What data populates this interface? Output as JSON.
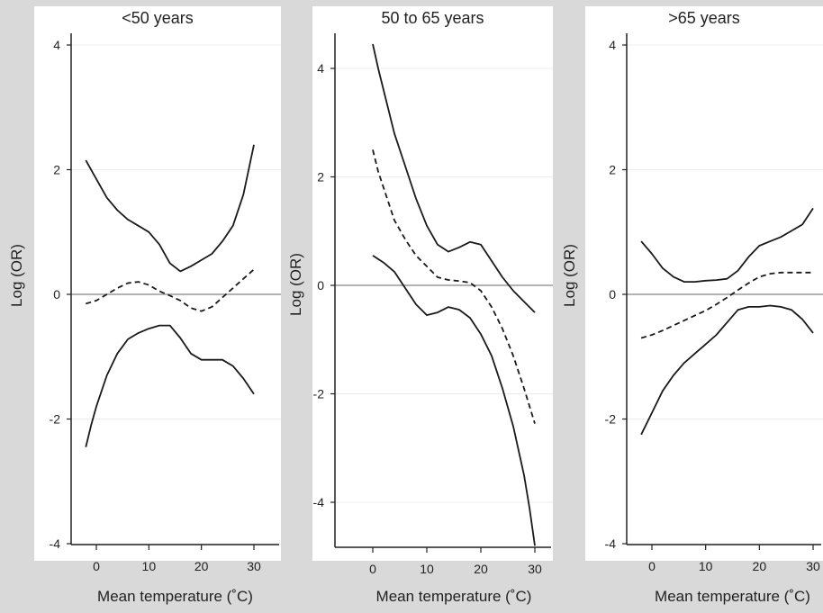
{
  "chart_data": [
    {
      "type": "line",
      "title": "<50 years",
      "xlabel": "Mean temperature (˚C)",
      "ylabel": "Log (OR)",
      "xlim": [
        -4,
        31
      ],
      "ylim": [
        -4.05,
        4.05
      ],
      "x_ticks": [
        "0",
        "10",
        "20",
        "30"
      ],
      "y_ticks": [
        "4",
        "2",
        "0",
        "-2",
        "-4"
      ],
      "reference_line": 0,
      "grid": "horizontal",
      "series": [
        {
          "style": "solid",
          "x": [
            -2,
            0,
            2,
            4,
            6,
            8,
            10,
            12,
            14,
            16,
            18,
            20,
            22,
            24,
            26,
            28,
            30
          ],
          "y": [
            2.15,
            1.85,
            1.55,
            1.35,
            1.2,
            1.1,
            1.0,
            0.8,
            0.5,
            0.37,
            0.45,
            0.55,
            0.65,
            0.85,
            1.1,
            1.6,
            2.4
          ]
        },
        {
          "style": "dashed",
          "x": [
            -2,
            0,
            2,
            4,
            6,
            8,
            10,
            12,
            14,
            16,
            18,
            20,
            22,
            24,
            26,
            28,
            30
          ],
          "y": [
            -0.15,
            -0.1,
            0.0,
            0.1,
            0.18,
            0.2,
            0.15,
            0.05,
            -0.02,
            -0.1,
            -0.22,
            -0.27,
            -0.2,
            -0.05,
            0.1,
            0.25,
            0.4
          ]
        },
        {
          "style": "solid",
          "x": [
            -2,
            -1,
            0,
            2,
            4,
            6,
            8,
            10,
            12,
            14,
            16,
            18,
            20,
            22,
            24,
            26,
            28,
            30
          ],
          "y": [
            -2.45,
            -2.1,
            -1.8,
            -1.3,
            -0.95,
            -0.72,
            -0.62,
            -0.55,
            -0.5,
            -0.5,
            -0.7,
            -0.95,
            -1.05,
            -1.05,
            -1.05,
            -1.15,
            -1.35,
            -1.6
          ]
        }
      ]
    },
    {
      "type": "line",
      "title": "50 to 65 years",
      "xlabel": "Mean temperature (˚C)",
      "ylabel": "Log (OR)",
      "xlim": [
        -6,
        32
      ],
      "ylim": [
        -4.8,
        4.6
      ],
      "x_ticks": [
        "0",
        "10",
        "20",
        "30"
      ],
      "y_ticks": [
        "4",
        "2",
        "0",
        "-2",
        "-4"
      ],
      "reference_line": 0,
      "grid": "horizontal",
      "series": [
        {
          "style": "solid",
          "x": [
            0,
            1,
            2,
            3,
            4,
            6,
            8,
            10,
            12,
            14,
            16,
            18,
            20,
            22,
            24,
            26,
            28,
            30
          ],
          "y": [
            4.45,
            4.0,
            3.6,
            3.2,
            2.8,
            2.2,
            1.6,
            1.1,
            0.75,
            0.62,
            0.7,
            0.8,
            0.75,
            0.45,
            0.15,
            -0.1,
            -0.3,
            -0.5
          ]
        },
        {
          "style": "dashed",
          "x": [
            0,
            1,
            2,
            3,
            4,
            6,
            8,
            10,
            12,
            14,
            16,
            18,
            20,
            22,
            24,
            26,
            28,
            30
          ],
          "y": [
            2.5,
            2.1,
            1.8,
            1.5,
            1.2,
            0.85,
            0.55,
            0.35,
            0.15,
            0.1,
            0.08,
            0.05,
            -0.1,
            -0.4,
            -0.8,
            -1.3,
            -1.9,
            -2.55
          ]
        },
        {
          "style": "solid",
          "x": [
            0,
            2,
            4,
            6,
            8,
            10,
            12,
            14,
            16,
            18,
            20,
            22,
            24,
            26,
            28,
            29,
            30
          ],
          "y": [
            0.55,
            0.42,
            0.25,
            -0.05,
            -0.35,
            -0.55,
            -0.5,
            -0.4,
            -0.45,
            -0.6,
            -0.9,
            -1.3,
            -1.9,
            -2.6,
            -3.5,
            -4.1,
            -4.8
          ]
        }
      ]
    },
    {
      "type": "line",
      "title": ">65 years",
      "xlabel": "Mean temperature (˚C)",
      "ylabel": "Log (OR)",
      "xlim": [
        -4,
        31
      ],
      "ylim": [
        -4.05,
        4.05
      ],
      "x_ticks": [
        "0",
        "10",
        "20",
        "30"
      ],
      "y_ticks": [
        "4",
        "2",
        "0",
        "-2",
        "-4"
      ],
      "reference_line": 0,
      "grid": "horizontal",
      "series": [
        {
          "style": "solid",
          "x": [
            -2,
            0,
            2,
            4,
            6,
            8,
            10,
            12,
            14,
            16,
            18,
            20,
            22,
            24,
            26,
            28,
            30
          ],
          "y": [
            0.85,
            0.65,
            0.42,
            0.28,
            0.2,
            0.2,
            0.22,
            0.23,
            0.25,
            0.38,
            0.6,
            0.78,
            0.85,
            0.92,
            1.02,
            1.12,
            1.38
          ]
        },
        {
          "style": "dashed",
          "x": [
            -2,
            0,
            2,
            4,
            6,
            8,
            10,
            12,
            14,
            16,
            18,
            20,
            22,
            24,
            26,
            28,
            30
          ],
          "y": [
            -0.7,
            -0.65,
            -0.58,
            -0.5,
            -0.42,
            -0.34,
            -0.26,
            -0.16,
            -0.05,
            0.07,
            0.18,
            0.28,
            0.33,
            0.35,
            0.35,
            0.35,
            0.35
          ]
        },
        {
          "style": "solid",
          "x": [
            -2,
            0,
            2,
            4,
            6,
            8,
            10,
            12,
            14,
            16,
            18,
            20,
            22,
            24,
            26,
            28,
            30
          ],
          "y": [
            -2.25,
            -1.9,
            -1.55,
            -1.3,
            -1.1,
            -0.95,
            -0.8,
            -0.65,
            -0.45,
            -0.25,
            -0.2,
            -0.2,
            -0.18,
            -0.2,
            -0.25,
            -0.4,
            -0.62
          ]
        }
      ]
    }
  ]
}
